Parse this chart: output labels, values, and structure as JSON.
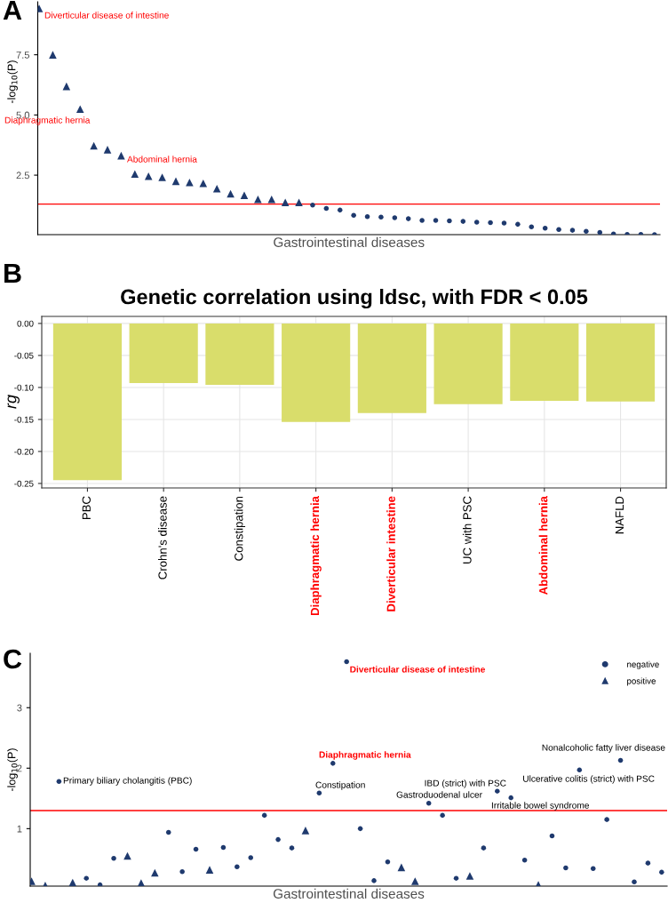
{
  "chart_data": [
    {
      "type": "scatter",
      "xlabel": "Gastrointestinal diseases",
      "ylabel": "-log$_{10}$(P)",
      "categories": [
        null,
        null,
        null,
        null,
        null,
        null,
        null,
        null,
        null,
        null,
        null,
        null,
        null,
        null,
        null,
        null,
        null,
        null,
        null,
        null,
        null,
        null,
        null,
        null,
        null,
        null,
        null,
        null,
        null,
        null,
        null,
        null,
        null,
        null,
        null,
        null,
        null,
        null,
        null,
        null,
        null,
        null,
        null,
        null,
        null,
        null
      ],
      "series": [
        {
          "color": "#1f3a6e",
          "marker": "triangle",
          "values": [
            9.42,
            7.5,
            6.19,
            5.24,
            3.72,
            3.56,
            3.31,
            2.55,
            2.46,
            2.41,
            2.25,
            2.2,
            2.16,
            1.94,
            1.73,
            1.66,
            1.5,
            1.5,
            1.37,
            1.37,
            null,
            null,
            null,
            null,
            null,
            null,
            null,
            null,
            null,
            null,
            null,
            null,
            null,
            null,
            null,
            null,
            null,
            null,
            null,
            null,
            null,
            null,
            null,
            null,
            null,
            null
          ]
        },
        {
          "color": "#1f3a6e",
          "marker": "circle",
          "values": [
            null,
            null,
            null,
            null,
            null,
            null,
            null,
            null,
            null,
            null,
            null,
            null,
            null,
            null,
            null,
            null,
            null,
            null,
            null,
            null,
            1.26,
            1.12,
            1.05,
            0.83,
            0.78,
            0.76,
            0.73,
            0.69,
            0.62,
            0.62,
            0.6,
            0.58,
            0.55,
            0.53,
            0.51,
            0.46,
            0.35,
            0.3,
            0.24,
            0.21,
            0.17,
            0.12,
            0.06,
            0.04,
            0.04,
            0.03
          ]
        }
      ],
      "ylim": [
        0.03,
        9.7
      ],
      "yticks": [
        2.5,
        {
          "value": 5,
          "label": "5.0"
        },
        7.5
      ],
      "tick_labels": "y",
      "ref_lines": [
        {
          "axis": "y",
          "value": 1.3,
          "color": "#ff0000"
        }
      ],
      "annotations": [
        "A",
        "Diverticular disease of intestine",
        "Diaphragmatic hernia",
        "Abdominal hernia"
      ]
    },
    {
      "type": "bar",
      "title": "Genetic correlation using ldsc, with FDR < 0.05",
      "ylabel": "rg",
      "categories": [
        "PBC",
        "Crohn's disease",
        "Constipation",
        "Diaphragmatic hernia",
        "Diverticular intestine",
        "UC with PSC",
        "Abdominal hernia",
        "NAFLD"
      ],
      "values": [
        -0.245,
        -0.093,
        -0.096,
        -0.154,
        -0.14,
        -0.126,
        -0.121,
        -0.122
      ],
      "color": "#d9dd6b",
      "ylim": [
        -0.257,
        0.011
      ],
      "yticks": [
        {
          "value": -0.25,
          "label": "-0.25"
        },
        {
          "value": -0.2,
          "label": "-0.20"
        },
        {
          "value": -0.15,
          "label": "-0.15"
        },
        {
          "value": -0.1,
          "label": "-0.10"
        },
        {
          "value": -0.05,
          "label": "-0.05"
        },
        {
          "value": 0,
          "label": "0.00"
        }
      ],
      "grid": true,
      "annotations": [
        "B"
      ]
    },
    {
      "type": "scatter",
      "xlabel": "Gastrointestinal diseases",
      "ylabel": "-log$_{10}$(P)",
      "categories": [
        null,
        null,
        null,
        null,
        null,
        null,
        null,
        null,
        null,
        null,
        null,
        null,
        null,
        null,
        null,
        null,
        null,
        null,
        null,
        null,
        null,
        null,
        null,
        null,
        null,
        null,
        null,
        null,
        null,
        null,
        null,
        null,
        null,
        null,
        null,
        null,
        null,
        null,
        null,
        null,
        null,
        null,
        null,
        null,
        null,
        null,
        null
      ],
      "series": [
        {
          "name": "negative",
          "color": "#1f3a6e",
          "marker": "circle",
          "values": [
            null,
            null,
            1.78,
            null,
            0.18,
            0.07,
            0.51,
            null,
            null,
            null,
            0.94,
            0.29,
            0.66,
            null,
            0.69,
            0.37,
            0.52,
            1.22,
            0.82,
            0.68,
            null,
            1.59,
            2.08,
            3.76,
            1.0,
            0.14,
            0.45,
            null,
            null,
            1.42,
            1.22,
            0.18,
            null,
            0.68,
            1.62,
            1.51,
            0.48,
            null,
            0.88,
            0.35,
            1.97,
            0.34,
            1.15,
            2.13,
            0.12,
            0.43,
            0.28
          ]
        },
        {
          "name": "positive",
          "color": "#1f3a6e",
          "marker": "triangle",
          "values": [
            0.13,
            0.06,
            null,
            0.11,
            null,
            null,
            null,
            0.55,
            0.1,
            0.27,
            null,
            null,
            null,
            0.32,
            null,
            null,
            null,
            null,
            null,
            null,
            0.97,
            null,
            null,
            null,
            null,
            null,
            null,
            0.36,
            0.13,
            null,
            null,
            null,
            0.22,
            null,
            null,
            null,
            null,
            0.07,
            null,
            null,
            null,
            null,
            null,
            null,
            null,
            null,
            null
          ]
        }
      ],
      "ylim": [
        0.05,
        3.9
      ],
      "yticks": [
        1,
        2,
        3
      ],
      "tick_labels": "y",
      "legend": "top right",
      "ref_lines": [
        {
          "axis": "y",
          "value": 1.3,
          "color": "#ff0000"
        }
      ],
      "annotations": [
        "C",
        "Diverticular disease of intestine",
        "Diaphragmatic hernia",
        "Primary biliary cholangitis (PBC)",
        "Constipation",
        "Gastroduodenal ulcer",
        "IBD (strict) with PSC",
        "Irritable bowel syndrome",
        "Ulcerative colitis (strict) with PSC",
        "Nonalcoholic fatty liver disease"
      ]
    }
  ]
}
